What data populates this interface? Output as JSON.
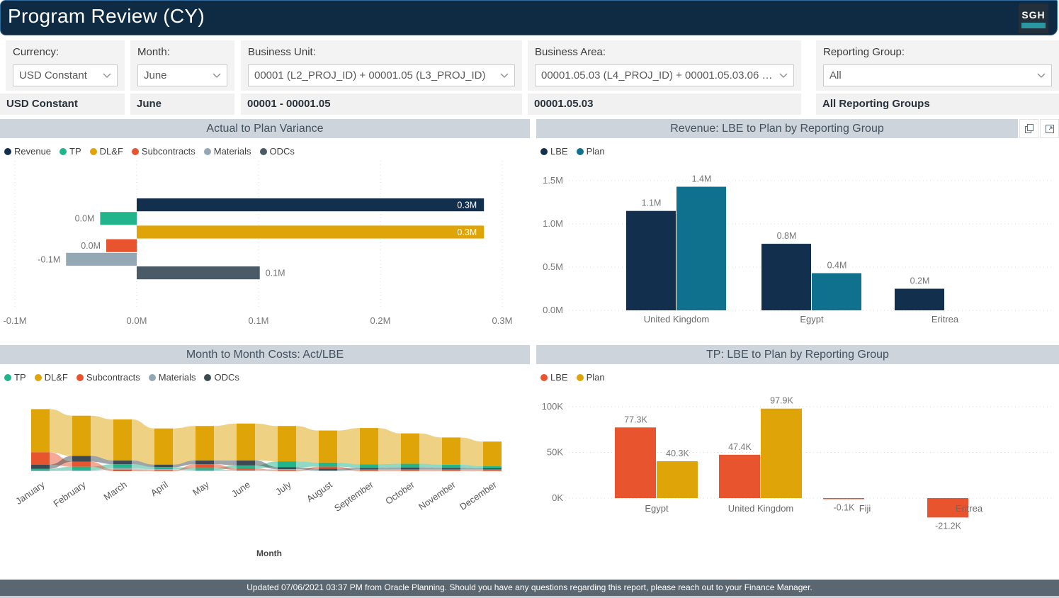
{
  "header": {
    "title": "Program Review (CY)",
    "logo_text": "SGH"
  },
  "filters": [
    {
      "label": "Currency:",
      "value": "USD Constant",
      "selected": "USD Constant"
    },
    {
      "label": "Month:",
      "value": "June",
      "selected": "June"
    },
    {
      "label": "Business Unit:",
      "value": "00001 (L2_PROJ_ID) + 00001.05 (L3_PROJ_ID)",
      "selected": "00001 - 00001.05"
    },
    {
      "label": "Business Area:",
      "value": "00001.05.03 (L4_PROJ_ID) + 00001.05.03.06 (L5...",
      "selected": "00001.05.03"
    },
    {
      "label": "Reporting Group:",
      "value": "All",
      "selected": "All Reporting Groups"
    }
  ],
  "colors": {
    "header_bg": "#0F2B44",
    "panel_header_bg": "#CDD4DB",
    "footer_bg": "#5B6770",
    "navy": "#12304E",
    "teal_blue": "#10718F",
    "gold": "#DEA408",
    "orange": "#E8542E",
    "teal_green": "#22B58C",
    "gray_blue": "#93A8B4",
    "slate": "#4A5A66"
  },
  "chart_data": [
    {
      "type": "bar",
      "orientation": "horizontal",
      "title": "Actual to Plan Variance",
      "categories": [
        "Revenue",
        "TP",
        "DL&F",
        "Subcontracts",
        "Materials",
        "ODCs"
      ],
      "values": [
        0.285,
        -0.03,
        0.285,
        -0.025,
        -0.058,
        0.101
      ],
      "labels": [
        "0.3M",
        "0.0M",
        "0.3M",
        "0.0M",
        "-0.1M",
        "0.1M"
      ],
      "colors": [
        "#12304E",
        "#22B58C",
        "#DEA408",
        "#E8542E",
        "#93A8B4",
        "#4A5A66"
      ],
      "xticks": [
        {
          "v": -0.1,
          "label": "-0.1M"
        },
        {
          "v": 0,
          "label": "0.0M"
        },
        {
          "v": 0.1,
          "label": "0.1M"
        },
        {
          "v": 0.2,
          "label": "0.2M"
        },
        {
          "v": 0.3,
          "label": "0.3M"
        }
      ],
      "xlim": [
        -0.1,
        0.3
      ],
      "grid": "dotted-vertical",
      "unit": "M"
    },
    {
      "type": "bar",
      "orientation": "vertical",
      "title": "Revenue: LBE to Plan by Reporting Group",
      "categories": [
        "United Kingdom",
        "Egypt",
        "Eritrea"
      ],
      "series": [
        {
          "name": "LBE",
          "color": "#12304E",
          "values": [
            1.15,
            0.77,
            0.25
          ],
          "labels": [
            "1.1M",
            "0.8M",
            "0.2M"
          ]
        },
        {
          "name": "Plan",
          "color": "#10718F",
          "values": [
            1.43,
            0.43,
            null
          ],
          "labels": [
            "1.4M",
            "0.4M",
            null
          ]
        }
      ],
      "yticks": [
        {
          "v": 0,
          "label": "0.0M"
        },
        {
          "v": 0.5,
          "label": "0.5M"
        },
        {
          "v": 1,
          "label": "1.0M"
        },
        {
          "v": 1.5,
          "label": "1.5M"
        }
      ],
      "ylim": [
        0,
        1.5
      ],
      "grid": "dotted-horizontal",
      "legend_position": "top-left",
      "actions": [
        "copy",
        "focus-mode"
      ]
    },
    {
      "type": "ribbon",
      "title": "Month to Month Costs: Act/LBE",
      "xlabel": "Month",
      "categories": [
        "January",
        "February",
        "March",
        "April",
        "May",
        "June",
        "July",
        "August",
        "September",
        "October",
        "November",
        "December"
      ],
      "series": [
        {
          "name": "TP",
          "color": "#22B58C",
          "values": [
            4,
            8,
            9,
            5,
            5,
            7,
            14,
            10,
            9,
            9,
            8,
            5
          ]
        },
        {
          "name": "DL&F",
          "color": "#DEA408",
          "values": [
            105,
            98,
            100,
            88,
            84,
            90,
            86,
            78,
            88,
            74,
            66,
            60
          ]
        },
        {
          "name": "Subcontracts",
          "color": "#E8542E",
          "values": [
            30,
            12,
            4,
            2,
            9,
            4,
            2,
            5,
            2,
            2,
            2,
            2
          ]
        },
        {
          "name": "Materials",
          "color": "#93A8B4",
          "values": [
            2,
            3,
            4,
            3,
            3,
            3,
            3,
            2,
            2,
            2,
            2,
            2
          ]
        },
        {
          "name": "ODCs",
          "color": "#3E4A52",
          "values": [
            10,
            14,
            9,
            6,
            9,
            12,
            5,
            4,
            4,
            5,
            4,
            3
          ]
        }
      ],
      "unit": "K"
    },
    {
      "type": "bar",
      "orientation": "vertical",
      "title": "TP: LBE to Plan by Reporting Group",
      "categories": [
        "Egypt",
        "United Kingdom",
        "Fiji",
        "Eritrea"
      ],
      "series": [
        {
          "name": "LBE",
          "color": "#E8542E",
          "values": [
            77.3,
            47.4,
            -0.1,
            -21.2
          ],
          "labels": [
            "77.3K",
            "47.4K",
            "-0.1K",
            "-21.2K"
          ]
        },
        {
          "name": "Plan",
          "color": "#DEA408",
          "values": [
            40.3,
            97.9,
            null,
            null
          ],
          "labels": [
            "40.3K",
            "97.9K",
            null,
            null
          ]
        }
      ],
      "yticks": [
        {
          "v": 0,
          "label": "0K"
        },
        {
          "v": 50,
          "label": "50K"
        },
        {
          "v": 100,
          "label": "100K"
        }
      ],
      "ylim": [
        -25,
        110
      ],
      "grid": "dotted-horizontal"
    }
  ],
  "footer": {
    "text": "Updated 07/06/2021 03:37 PM from Oracle Planning. Should you have any questions regarding this report, please reach out to your Finance Manager."
  }
}
